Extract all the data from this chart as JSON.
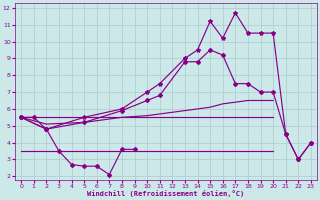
{
  "xlabel": "Windchill (Refroidissement éolien,°C)",
  "background_color": "#cce8e8",
  "grid_color": "#aacccc",
  "line_color": "#880088",
  "text_color": "#880088",
  "xlim": [
    -0.5,
    23.5
  ],
  "ylim": [
    1.8,
    12.3
  ],
  "yticks": [
    2,
    3,
    4,
    5,
    6,
    7,
    8,
    9,
    10,
    11,
    12
  ],
  "xticks": [
    0,
    1,
    2,
    3,
    4,
    5,
    6,
    7,
    8,
    9,
    10,
    11,
    12,
    13,
    14,
    15,
    16,
    17,
    18,
    19,
    20,
    21,
    22,
    23
  ],
  "line1_x": [
    0,
    1,
    2,
    3,
    4,
    5,
    6,
    7,
    8,
    9,
    10,
    11,
    12,
    13,
    14,
    15,
    16,
    17,
    18,
    19,
    20
  ],
  "line1_y": [
    5.5,
    5.5,
    5.5,
    5.5,
    5.5,
    5.5,
    5.5,
    5.5,
    5.5,
    5.5,
    5.5,
    5.5,
    5.5,
    5.5,
    5.5,
    5.5,
    5.5,
    5.5,
    5.5,
    5.5,
    5.5
  ],
  "line2_x": [
    0,
    2,
    5,
    8,
    10,
    11,
    12,
    13,
    14,
    15,
    16,
    17,
    18,
    19,
    20
  ],
  "line2_y": [
    5.5,
    5.1,
    5.2,
    5.5,
    5.6,
    5.7,
    5.8,
    5.9,
    6.0,
    6.1,
    6.3,
    6.4,
    6.5,
    6.5,
    6.5
  ],
  "line3_x": [
    0,
    2,
    5,
    8,
    10,
    11,
    13,
    14,
    15,
    16,
    17,
    18,
    19,
    20,
    21,
    22,
    23
  ],
  "line3_y": [
    5.5,
    4.8,
    5.2,
    5.9,
    6.5,
    6.8,
    8.8,
    8.8,
    9.5,
    9.2,
    7.5,
    7.5,
    7.0,
    7.0,
    4.5,
    3.0,
    4.0
  ],
  "line4_x": [
    0,
    2,
    5,
    8,
    10,
    11,
    13,
    14,
    15,
    16,
    17,
    18,
    19,
    20,
    21,
    22,
    23
  ],
  "line4_y": [
    5.5,
    4.8,
    5.5,
    6.0,
    7.0,
    7.5,
    9.0,
    9.5,
    11.2,
    10.2,
    11.7,
    10.5,
    10.5,
    10.5,
    4.5,
    3.0,
    4.0
  ],
  "line5_x": [
    0,
    1,
    2,
    3,
    4,
    5,
    6,
    7,
    8,
    9,
    10,
    11,
    12,
    13,
    14,
    15,
    16,
    17,
    18,
    19,
    20
  ],
  "line5_y": [
    3.5,
    3.5,
    3.5,
    3.5,
    3.5,
    3.5,
    3.5,
    3.5,
    3.5,
    3.5,
    3.5,
    3.5,
    3.5,
    3.5,
    3.5,
    3.5,
    3.5,
    3.5,
    3.5,
    3.5,
    3.5
  ],
  "line6_x": [
    0,
    1,
    2,
    3,
    4,
    5,
    6,
    7,
    8,
    9
  ],
  "line6_y": [
    5.5,
    5.5,
    4.8,
    3.5,
    2.7,
    2.6,
    2.6,
    2.1,
    3.6,
    3.6
  ]
}
